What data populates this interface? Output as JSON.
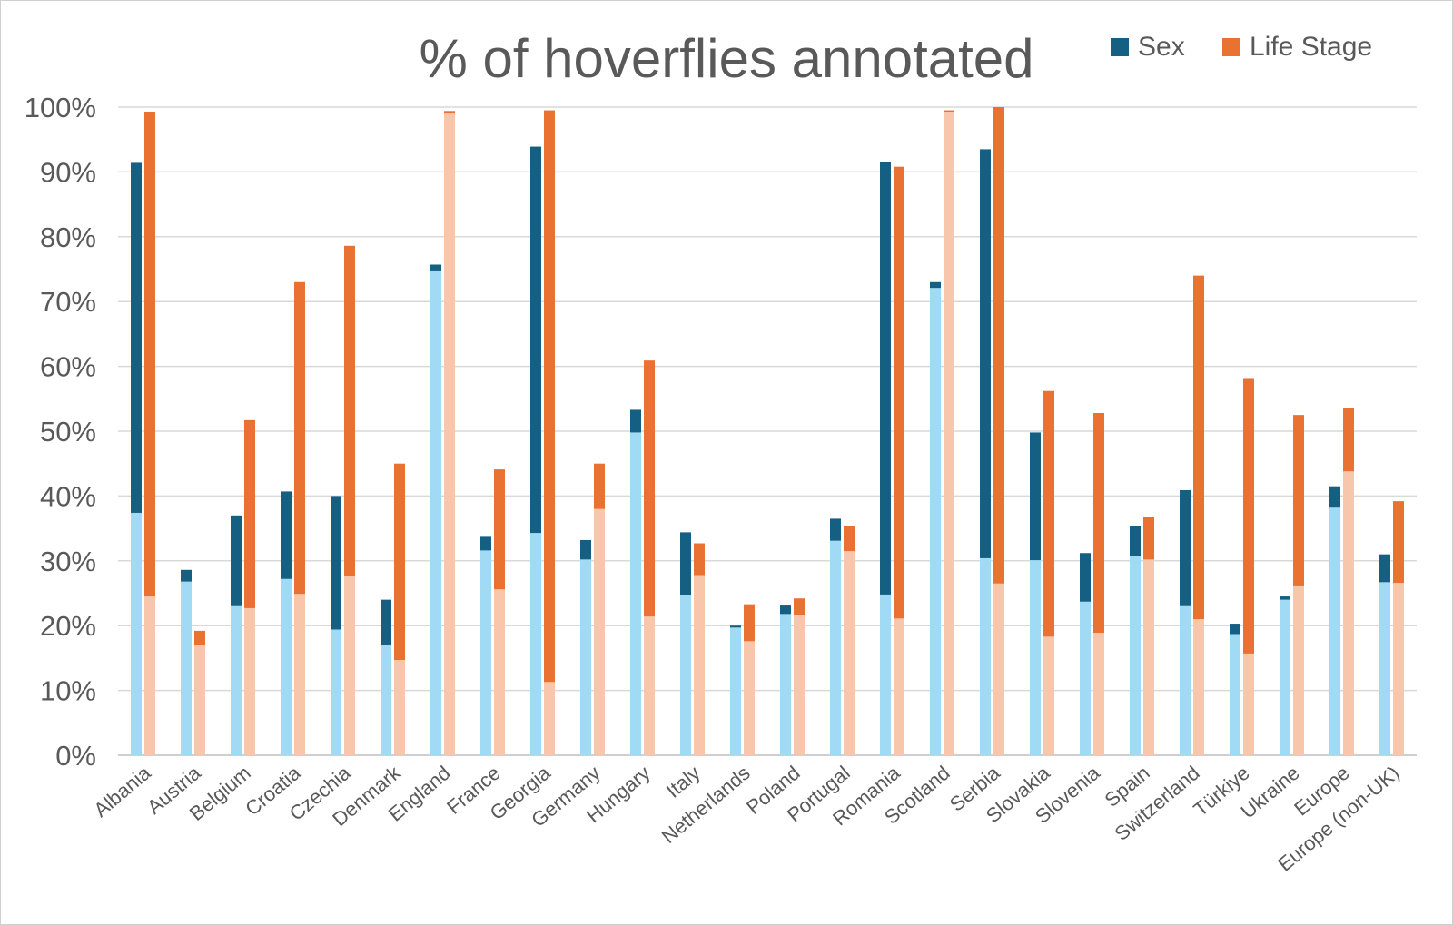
{
  "chart_data": {
    "type": "bar",
    "title": "% of hoverflies annotated",
    "legend": [
      "Sex",
      "Life Stage"
    ],
    "legend_position": "top-right",
    "ylim": [
      0,
      100
    ],
    "y_ticks": [
      "0%",
      "10%",
      "20%",
      "30%",
      "40%",
      "50%",
      "60%",
      "70%",
      "80%",
      "90%",
      "100%"
    ],
    "categories": [
      "Albania",
      "Austria",
      "Belgium",
      "Croatia",
      "Czechia",
      "Denmark",
      "England",
      "France",
      "Georgia",
      "Germany",
      "Hungary",
      "Italy",
      "Netherlands",
      "Poland",
      "Portugal",
      "Romania",
      "Scotland",
      "Serbia",
      "Slovakia",
      "Slovenia",
      "Spain",
      "Switzerland",
      "Türkiye",
      "Ukraine",
      "Europe",
      "Europe (non-UK)"
    ],
    "series": [
      {
        "name": "Sex",
        "color": "#156082",
        "light_color": "#a0daf4",
        "light_segment": [
          37.4,
          26.8,
          23.0,
          27.2,
          19.4,
          17.0,
          74.8,
          31.6,
          34.3,
          30.2,
          49.8,
          24.7,
          19.7,
          21.8,
          33.1,
          24.8,
          72.1,
          30.4,
          30.1,
          23.7,
          30.8,
          23.0,
          18.7,
          24.0,
          38.2,
          26.7
        ],
        "total": [
          91.4,
          28.6,
          37.0,
          40.7,
          40.0,
          24.0,
          75.7,
          33.7,
          93.9,
          33.2,
          53.3,
          34.4,
          20.0,
          23.1,
          36.5,
          91.6,
          73.0,
          93.5,
          49.8,
          31.2,
          35.3,
          40.9,
          20.3,
          24.5,
          41.5,
          31.0
        ]
      },
      {
        "name": "Life Stage",
        "color": "#e97132",
        "light_color": "#f7c6ab",
        "light_segment": [
          24.5,
          17.0,
          22.7,
          24.9,
          27.7,
          14.7,
          99.0,
          25.6,
          11.3,
          38.0,
          21.4,
          27.8,
          17.6,
          21.6,
          31.5,
          21.1,
          99.3,
          26.5,
          18.3,
          18.9,
          30.2,
          21.0,
          15.7,
          26.2,
          43.8,
          26.6
        ],
        "total": [
          99.3,
          19.2,
          51.7,
          73.0,
          78.6,
          45.0,
          99.4,
          44.1,
          99.5,
          45.0,
          60.9,
          32.7,
          23.3,
          24.2,
          35.4,
          90.8,
          99.5,
          100.0,
          56.2,
          52.8,
          36.7,
          74.0,
          58.2,
          52.5,
          53.6,
          39.2
        ]
      }
    ]
  }
}
